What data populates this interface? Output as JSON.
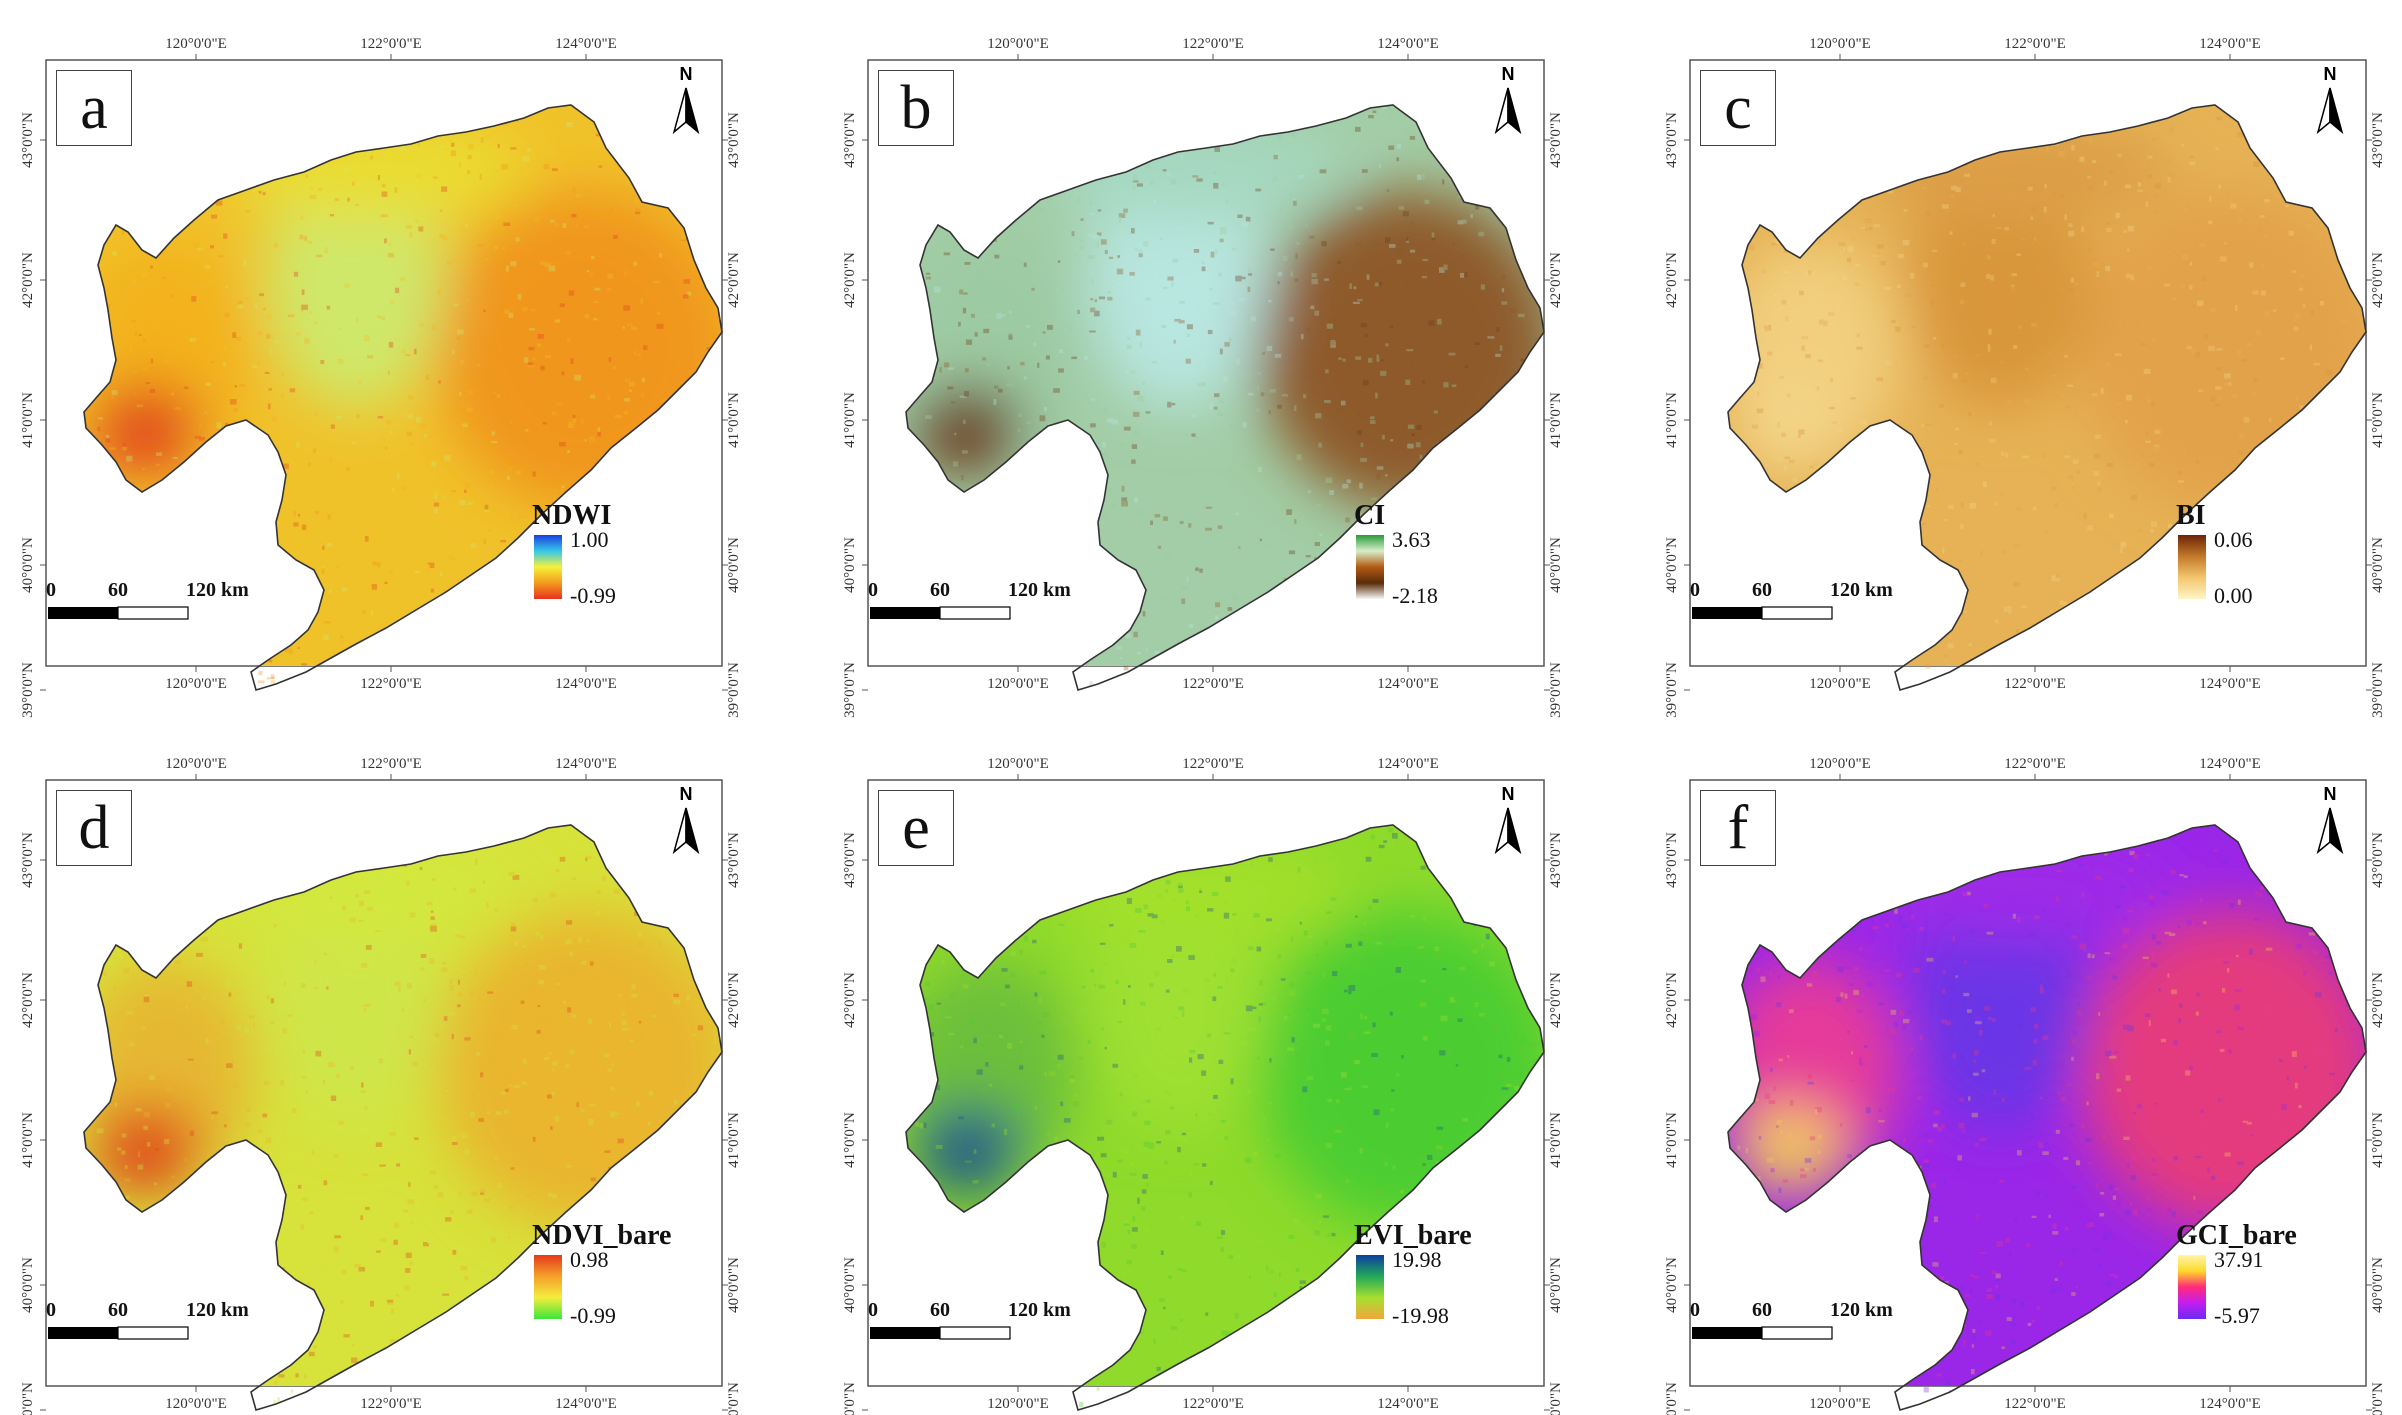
{
  "figure": {
    "panels": [
      {
        "letter": "a",
        "legend": {
          "title": "NDWI",
          "max": "1.00",
          "min": "-0.99",
          "gradient": [
            "#1a3fe0",
            "#35c8e8",
            "#f6f23a",
            "#f39a1e",
            "#e8321e"
          ]
        },
        "fill": {
          "base": "#f0c22a",
          "west": "#f3b21f",
          "east": "#f0961a",
          "sw": "#e2421c",
          "center": "#cfe86a",
          "north": "#eadd32"
        }
      },
      {
        "letter": "b",
        "legend": {
          "title": "CI",
          "max": "3.63",
          "min": "-2.18",
          "gradient": [
            "#2a9a3a",
            "#d7eec8",
            "#b35a14",
            "#5a2c0a",
            "#f7f7f7"
          ]
        },
        "fill": {
          "base": "#a2cda6",
          "west": "#9ccaa2",
          "east": "#8e5a2a",
          "sw": "#6d3e1c",
          "center": "#b8e6e0",
          "north": "#a6d8c0"
        }
      },
      {
        "letter": "c",
        "legend": {
          "title": "BI",
          "max": "0.06",
          "min": "0.00",
          "gradient": [
            "#6a2406",
            "#c37a2a",
            "#f2c66e",
            "#fff5c7"
          ]
        },
        "fill": {
          "base": "#e6b255",
          "west": "#f1cf7e",
          "east": "#e2a24a",
          "sw": "#f3d68a",
          "center": "#d9963a",
          "north": "#dc9f46"
        }
      },
      {
        "letter": "d",
        "legend": {
          "title": "NDVI_bare",
          "max": "0.98",
          "min": "-0.99",
          "gradient": [
            "#e43a1c",
            "#f6a02a",
            "#f3ed3c",
            "#3ce63a"
          ]
        },
        "fill": {
          "base": "#d7e23a",
          "west": "#e6b830",
          "east": "#e9b62e",
          "sw": "#e0451d",
          "center": "#cfe64a",
          "north": "#d3e83c"
        }
      },
      {
        "letter": "e",
        "legend": {
          "title": "EVI_bare",
          "max": "19.98",
          "min": "-19.98",
          "gradient": [
            "#0c3fa0",
            "#22a85a",
            "#a6e030",
            "#f2a63a"
          ]
        },
        "fill": {
          "base": "#8fda2a",
          "west": "#6cbf3a",
          "east": "#4ccd30",
          "sw": "#1f5a88",
          "center": "#9fe030",
          "north": "#a3e02a"
        }
      },
      {
        "letter": "f",
        "legend": {
          "title": "GCI_bare",
          "max": "37.91",
          "min": "-5.97",
          "gradient": [
            "#fff7a8",
            "#ffd82a",
            "#ff2a7a",
            "#c21ef0",
            "#6a2cf0"
          ]
        },
        "fill": {
          "base": "#9a26e8",
          "west": "#e63a9a",
          "east": "#e43a7e",
          "sw": "#f2c85a",
          "center": "#6a34e6",
          "north": "#9e2ae8"
        }
      }
    ],
    "scale_bar": {
      "ticks": [
        "0",
        "60",
        "120 km"
      ]
    },
    "north_label": "N",
    "lon_ticks": [
      "120°0'0\"E",
      "122°0'0\"E",
      "124°0'0\"E"
    ],
    "lat_ticks": [
      "43°0'0\"N",
      "42°0'0\"N",
      "41°0'0\"N",
      "40°0'0\"N",
      "39°0'0\"N"
    ]
  }
}
